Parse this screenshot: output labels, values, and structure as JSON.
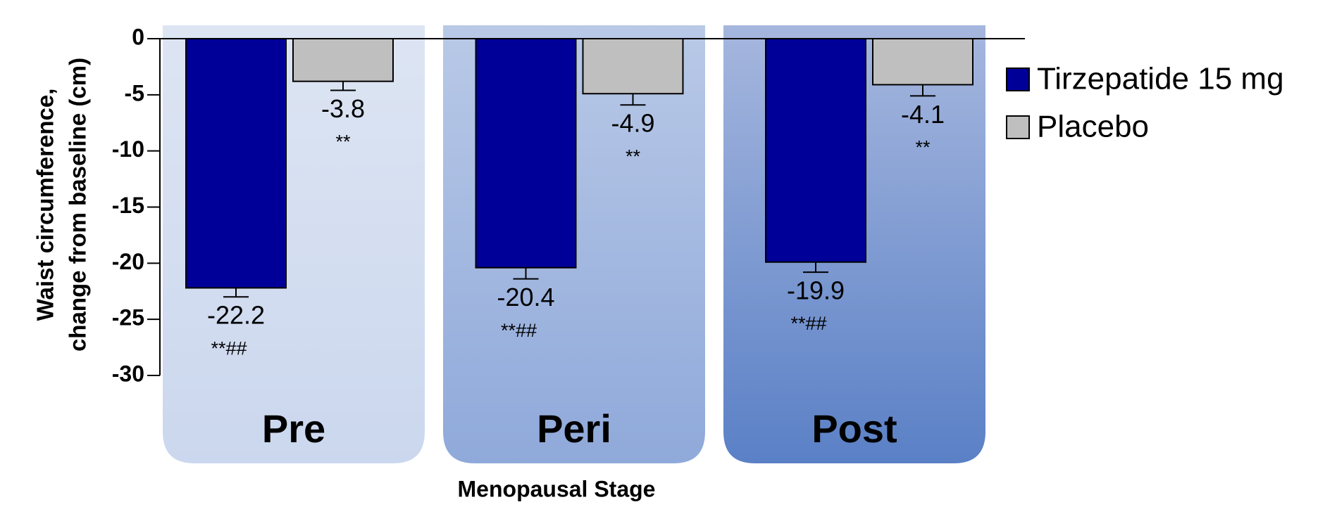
{
  "chart_data": {
    "type": "bar",
    "y_label": [
      "Waist circumference,",
      "change from baseline (cm)"
    ],
    "x_label": "Menopausal Stage",
    "categories": [
      "Pre",
      "Peri",
      "Post"
    ],
    "series": [
      {
        "name": "Tirzepatide 15 mg",
        "color": "#000099",
        "values": [
          -22.2,
          -20.4,
          -19.9
        ],
        "errors": [
          0.8,
          1.0,
          0.9
        ],
        "annotations": [
          "**##",
          "**##",
          "**##"
        ]
      },
      {
        "name": "Placebo",
        "color": "#bfbfbf",
        "values": [
          -3.8,
          -4.9,
          -4.1
        ],
        "errors": [
          0.8,
          1.0,
          1.0
        ],
        "annotations": [
          "**",
          "**",
          "**"
        ]
      }
    ],
    "ylim": [
      -30,
      0
    ],
    "yticks": [
      0,
      -5,
      -10,
      -15,
      -20,
      -25,
      -30
    ],
    "panel_colors": [
      [
        "#dde5f3",
        "#cbd7ee"
      ],
      [
        "#b9c9e7",
        "#8fa9da"
      ],
      [
        "#a6b7de",
        "#5a80c6"
      ]
    ]
  }
}
